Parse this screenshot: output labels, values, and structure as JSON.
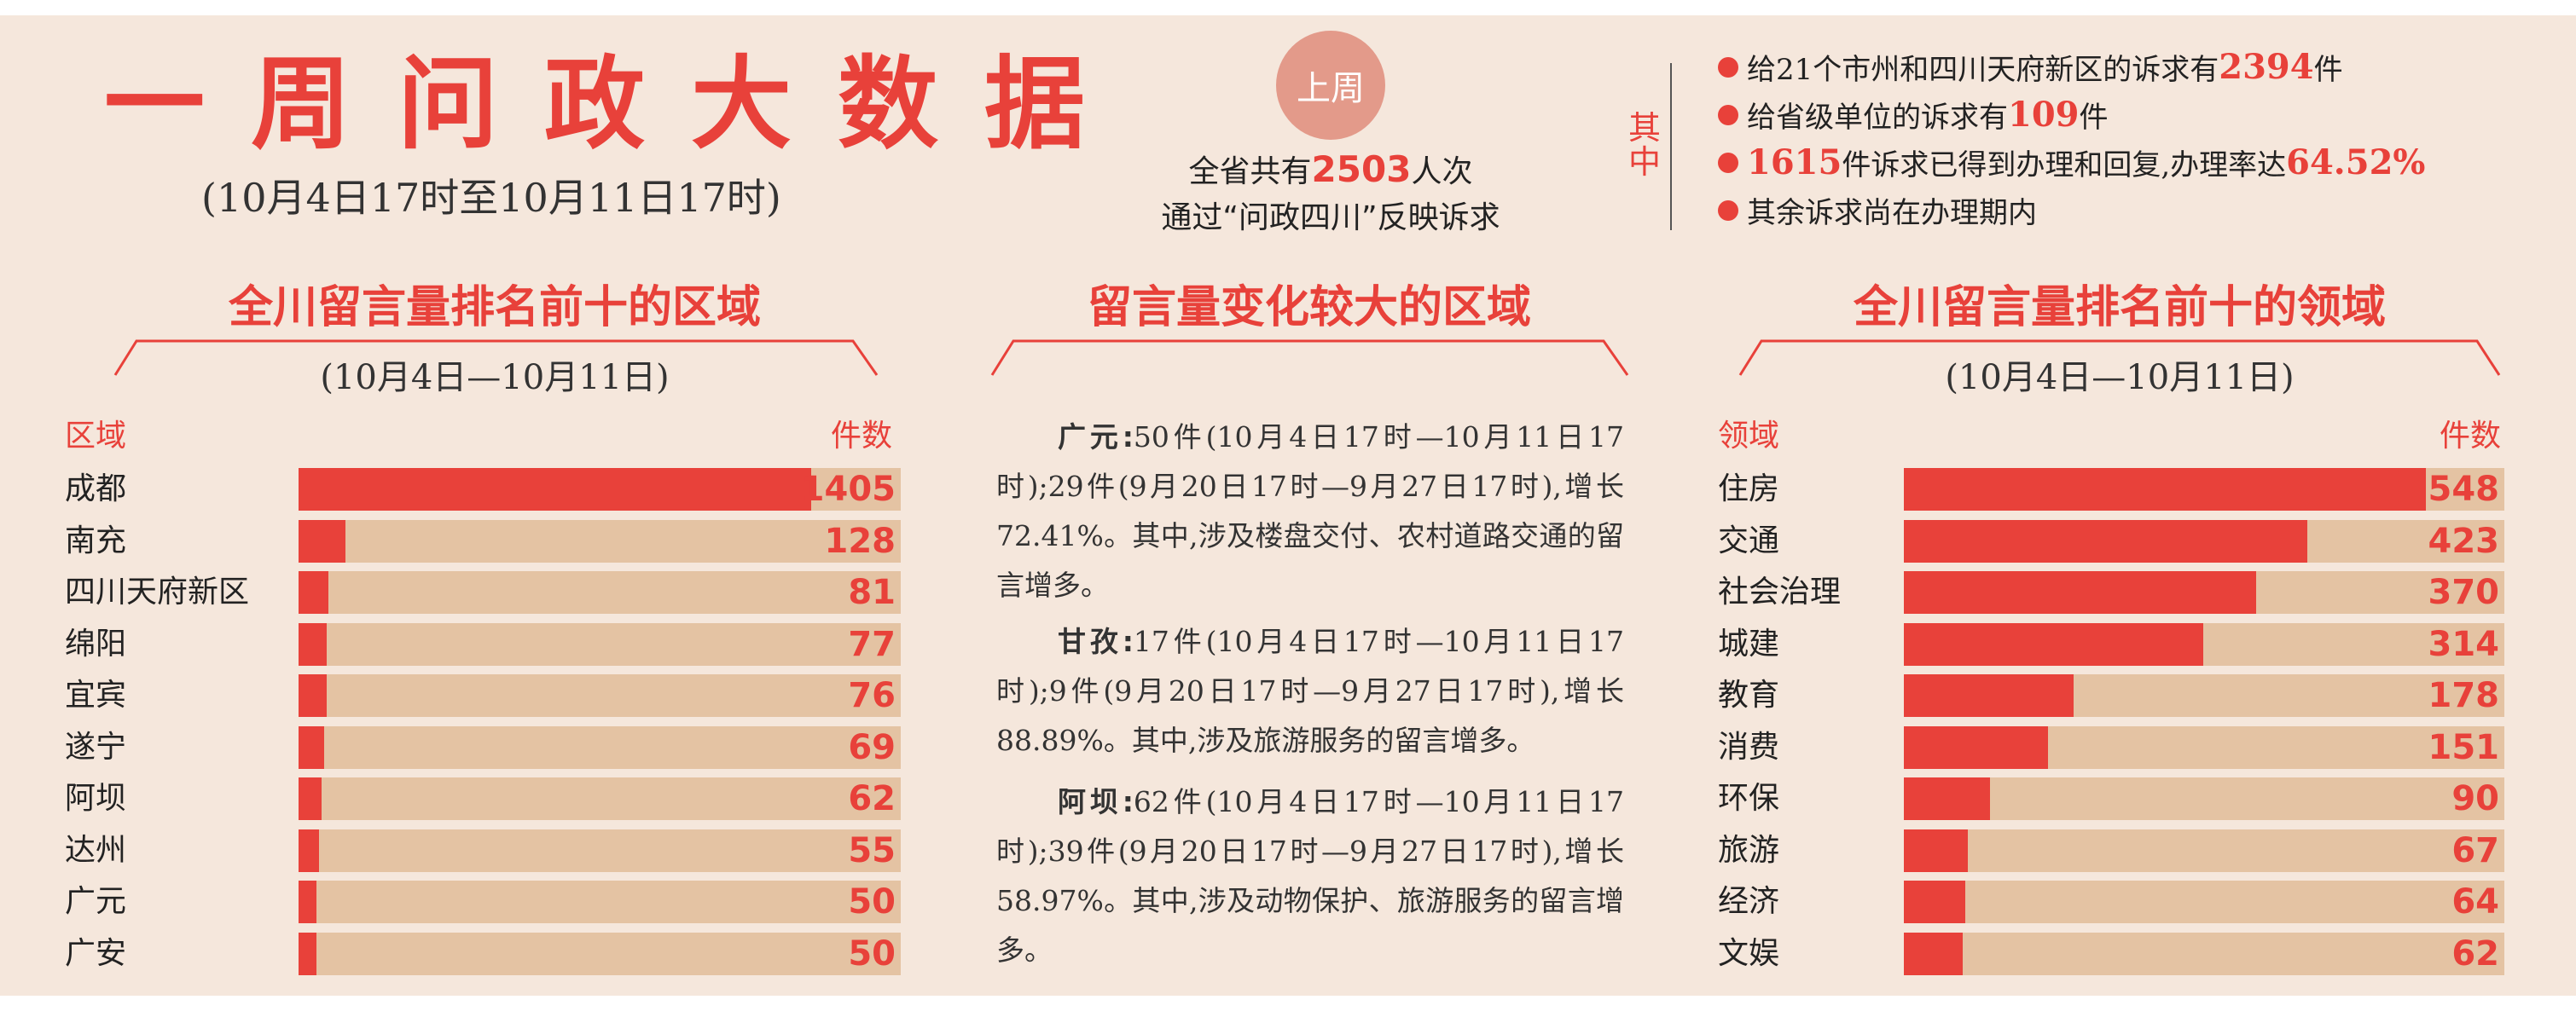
{
  "header": {
    "title": "一周问政大数据",
    "subtitle": "(10月4日17时至10月11日17时)",
    "badge": "上周",
    "summary_line1_prefix": "全省共有",
    "summary_line1_num": "2503",
    "summary_line1_suffix": "人次",
    "summary_line2": "通过“问政四川”反映诉求",
    "qizhong": "其中",
    "stats": [
      {
        "prefix": "给21个市州和四川天府新区的诉求有",
        "num": "2394",
        "suffix": "件",
        "num2": "",
        "tail": ""
      },
      {
        "prefix": "给省级单位的诉求有",
        "num": "109",
        "suffix": "件",
        "num2": "",
        "tail": ""
      },
      {
        "prefix": "",
        "num": "1615",
        "suffix": "件诉求已得到办理和回复,办理率达",
        "num2": "64.52%",
        "tail": ""
      },
      {
        "prefix": "其余诉求尚在办理期内",
        "num": "",
        "suffix": "",
        "num2": "",
        "tail": ""
      }
    ]
  },
  "left_section": {
    "title": "全川留言量排名前十的区域",
    "date": "(10月4日—10月11日)",
    "col_label": "区域",
    "col_value": "件数"
  },
  "middle_section": {
    "title": "留言量变化较大的区域",
    "paragraphs": [
      {
        "lead": "广元:",
        "text": "50件(10月4日17时—10月11日17时);29件(9月20日17时—9月27日17时),增长72.41%。其中,涉及楼盘交付、农村道路交通的留言增多。"
      },
      {
        "lead": "甘孜:",
        "text": "17件(10月4日17时—10月11日17时);9件(9月20日17时—9月27日17时),增长88.89%。其中,涉及旅游服务的留言增多。"
      },
      {
        "lead": "阿坝:",
        "text": "62件(10月4日17时—10月11日17时);39件(9月20日17时—9月27日17时),增长58.97%。其中,涉及动物保护、旅游服务的留言增多。"
      }
    ]
  },
  "right_section": {
    "title": "全川留言量排名前十的领域",
    "date": "(10月4日—10月11日)",
    "col_label": "领域",
    "col_value": "件数"
  },
  "colors": {
    "accent": "#e8413a",
    "track": "#e4c3a3",
    "background": "#f5e7dc",
    "badge": "#e39a8a"
  },
  "chart_data": [
    {
      "type": "bar",
      "orientation": "horizontal",
      "title": "全川留言量排名前十的区域",
      "subtitle": "(10月4日—10月11日)",
      "xlabel": "件数",
      "ylabel": "区域",
      "categories": [
        "成都",
        "南充",
        "四川天府新区",
        "绵阳",
        "宜宾",
        "遂宁",
        "阿坝",
        "达州",
        "广元",
        "广安"
      ],
      "values": [
        1405,
        128,
        81,
        77,
        76,
        69,
        62,
        55,
        50,
        50
      ],
      "xlim": [
        0,
        1650
      ]
    },
    {
      "type": "bar",
      "orientation": "horizontal",
      "title": "全川留言量排名前十的领域",
      "subtitle": "(10月4日—10月11日)",
      "xlabel": "件数",
      "ylabel": "领域",
      "categories": [
        "住房",
        "交通",
        "社会治理",
        "城建",
        "教育",
        "消费",
        "环保",
        "旅游",
        "经济",
        "文娱"
      ],
      "values": [
        548,
        423,
        370,
        314,
        178,
        151,
        90,
        67,
        64,
        62
      ],
      "xlim": [
        0,
        630
      ]
    }
  ]
}
